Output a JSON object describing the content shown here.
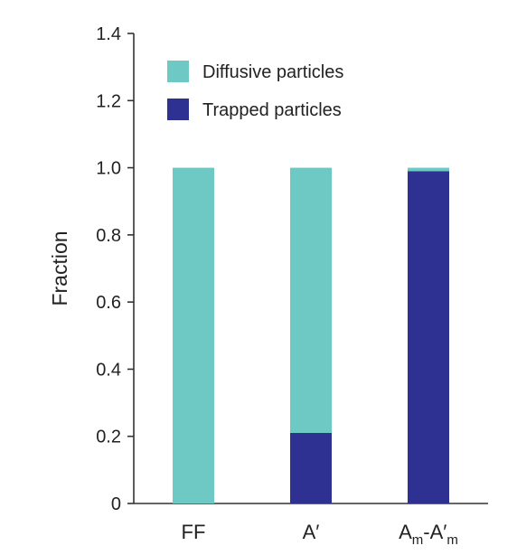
{
  "chart_data": {
    "type": "bar",
    "stacked": true,
    "categories": [
      "FF",
      "A′",
      "Aₘ-A′ₘ"
    ],
    "category_labels": [
      {
        "base": "FF"
      },
      {
        "base": "A′"
      },
      {
        "parts": [
          {
            "text": "A",
            "sub": false
          },
          {
            "text": "m",
            "sub": true
          },
          {
            "text": "-A′",
            "sub": false
          },
          {
            "text": "m",
            "sub": true
          }
        ]
      }
    ],
    "series": [
      {
        "name": "Trapped particles",
        "values": [
          0.0,
          0.21,
          0.99
        ],
        "color": "#2e3191"
      },
      {
        "name": "Diffusive particles",
        "values": [
          1.0,
          0.79,
          0.01
        ],
        "color": "#6ec8c4"
      }
    ],
    "legend_order": [
      "Diffusive particles",
      "Trapped particles"
    ],
    "legend_position": "top-left",
    "ylabel": "Fraction",
    "xlabel": "",
    "ylim": [
      0,
      1.4
    ],
    "yticks": [
      "0",
      "0.2",
      "0.4",
      "0.6",
      "0.8",
      "1.0",
      "1.2",
      "1.4"
    ],
    "grid": false
  }
}
